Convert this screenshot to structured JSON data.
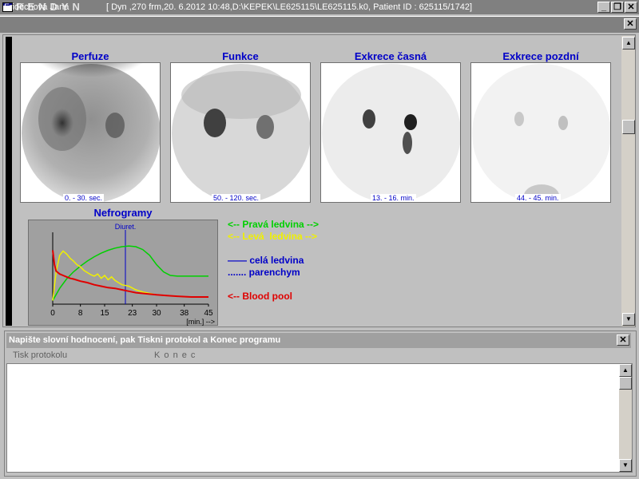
{
  "window": {
    "title": "RENDYN",
    "minimize_label": "_",
    "restore_label": "❐",
    "close_label": "✕"
  },
  "patient_bar": {
    "name": "Fridrichová Jana",
    "info": "[ Dyn ,270 frm,20. 6.2012  10:48,D:\\KEPEK\\LE625115\\LE625115.k0, Patient ID  : 625115/1742]",
    "close_label": "✕"
  },
  "images": [
    {
      "title": "Perfuze",
      "caption": "0. - 30. sec."
    },
    {
      "title": "Funkce",
      "caption": "50. - 120. sec."
    },
    {
      "title": "Exkrece časná",
      "caption": "13. - 16. min."
    },
    {
      "title": "Exkrece pozdní",
      "caption": "44. - 45. min."
    }
  ],
  "nefrogram": {
    "title": "Nefrogramy",
    "marker_label": "Diuret.",
    "x_unit_label": "[min.] -->"
  },
  "chart_data": {
    "type": "line",
    "title": "Nefrogramy",
    "xlabel": "[min.] -->",
    "x_ticks": [
      "0",
      "8",
      "15",
      "23",
      "30",
      "38",
      "45"
    ],
    "xlim": [
      0,
      45
    ],
    "annotation": {
      "label": "Diuret.",
      "x": 21
    },
    "series": [
      {
        "name": "Pravá ledvina",
        "color": "#00d000",
        "x": [
          0,
          2,
          4,
          6,
          8,
          10,
          12,
          14,
          16,
          18,
          20,
          22,
          24,
          26,
          28,
          30,
          32,
          34,
          36,
          38,
          40,
          42,
          45
        ],
        "y": [
          5,
          22,
          35,
          45,
          53,
          60,
          66,
          71,
          75,
          78,
          80,
          81,
          80,
          76,
          68,
          55,
          45,
          40,
          39,
          39,
          39,
          39,
          39
        ]
      },
      {
        "name": "Levá ledvina",
        "color": "#f0f000",
        "x": [
          0,
          1,
          2,
          3,
          4,
          5,
          6,
          7,
          8,
          9,
          10,
          11,
          12,
          13,
          14,
          15,
          16,
          17,
          18,
          19,
          20,
          22,
          24,
          26,
          28,
          30,
          33,
          36,
          40,
          45
        ],
        "y": [
          5,
          45,
          68,
          74,
          70,
          64,
          60,
          55,
          52,
          47,
          44,
          41,
          39,
          42,
          36,
          40,
          34,
          38,
          33,
          30,
          27,
          25,
          20,
          17,
          15,
          13,
          12,
          11,
          10,
          10
        ]
      },
      {
        "name": "Blood pool",
        "color": "#e00000",
        "x": [
          0,
          0.5,
          1,
          2,
          3,
          4,
          5,
          6,
          8,
          10,
          12,
          14,
          16,
          18,
          20,
          22,
          24,
          26,
          28,
          30,
          33,
          36,
          40,
          45
        ],
        "y": [
          75,
          55,
          46,
          42,
          40,
          38,
          36,
          35,
          32,
          30,
          27,
          25,
          23,
          22,
          20,
          18,
          16,
          15,
          14,
          13,
          12,
          11,
          10,
          10
        ]
      }
    ]
  },
  "legend": {
    "right_kidney": "<-- Pravá ledvina -->",
    "left_kidney": "<-- Levá  ledvina -->",
    "whole_kidney": "—— celá ledvina",
    "parenchyma": "....... parenchym",
    "blood_pool": "<-- Blood pool"
  },
  "colors": {
    "right_kidney": "#00d000",
    "left_kidney": "#f0f000",
    "blue": "#0000c8",
    "blood_pool": "#e00000"
  },
  "bottom_panel": {
    "title": "Napište slovní hodnocení, pak Tiskni protokol a Konec programu",
    "print_label": "Tisk protokolu",
    "exit_label": "K o n e c",
    "close_label": "✕",
    "text_value": ""
  }
}
